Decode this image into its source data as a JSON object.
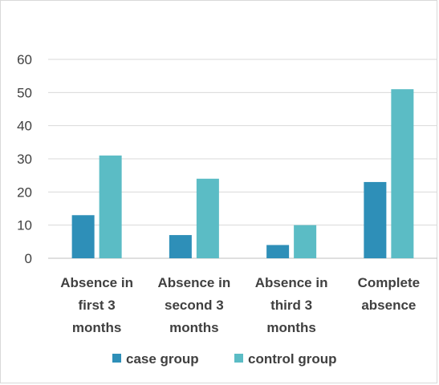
{
  "chart_data": {
    "type": "bar",
    "title": "",
    "xlabel": "",
    "ylabel": "",
    "categories": [
      [
        "Absence in",
        "first 3",
        "months"
      ],
      [
        "Absence in",
        "second 3",
        "months"
      ],
      [
        "Absence in",
        "third 3",
        "months"
      ],
      [
        "Complete",
        "absence"
      ]
    ],
    "series": [
      {
        "name": "case group",
        "color": "#2e8fb8",
        "values": [
          13,
          7,
          4,
          23
        ]
      },
      {
        "name": "control group",
        "color": "#5bbcc5",
        "values": [
          31,
          24,
          10,
          51
        ]
      }
    ],
    "ylim": [
      0,
      60
    ],
    "yticks": [
      0,
      10,
      20,
      30,
      40,
      50,
      60
    ],
    "grid": true,
    "legend_position": "bottom"
  }
}
